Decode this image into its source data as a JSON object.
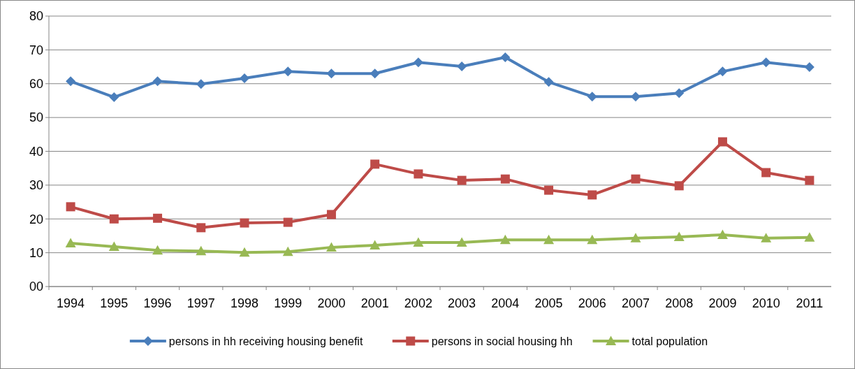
{
  "chart_data": {
    "type": "line",
    "categories": [
      "1994",
      "1995",
      "1996",
      "1997",
      "1998",
      "1999",
      "2000",
      "2001",
      "2002",
      "2003",
      "2004",
      "2005",
      "2006",
      "2007",
      "2008",
      "2009",
      "2010",
      "2011"
    ],
    "series": [
      {
        "name": "persons in hh receiving housing benefit",
        "color": "#4a7ebb",
        "marker": "diamond",
        "values": [
          60.7,
          56.0,
          60.7,
          59.9,
          61.6,
          63.6,
          63.0,
          63.0,
          66.3,
          65.1,
          67.8,
          60.5,
          56.2,
          56.2,
          57.2,
          63.6,
          66.3,
          64.9
        ]
      },
      {
        "name": "persons in social housing hh",
        "color": "#be4b48",
        "marker": "square",
        "values": [
          23.6,
          20.0,
          20.2,
          17.4,
          18.8,
          19.0,
          21.3,
          36.2,
          33.3,
          31.4,
          31.8,
          28.5,
          27.1,
          31.8,
          29.8,
          42.8,
          33.7,
          31.4
        ]
      },
      {
        "name": "total population",
        "color": "#98b954",
        "marker": "triangle",
        "values": [
          12.8,
          11.8,
          10.7,
          10.5,
          10.1,
          10.3,
          11.6,
          12.2,
          13.0,
          13.0,
          13.8,
          13.8,
          13.8,
          14.3,
          14.7,
          15.3,
          14.3,
          14.5
        ]
      }
    ],
    "ylim": [
      0,
      80
    ],
    "yticks": [
      {
        "value": 0,
        "label": "00"
      },
      10,
      20,
      30,
      40,
      50,
      60,
      70,
      80
    ],
    "grid": "y",
    "legend": "bottom",
    "line_style": "solid"
  }
}
